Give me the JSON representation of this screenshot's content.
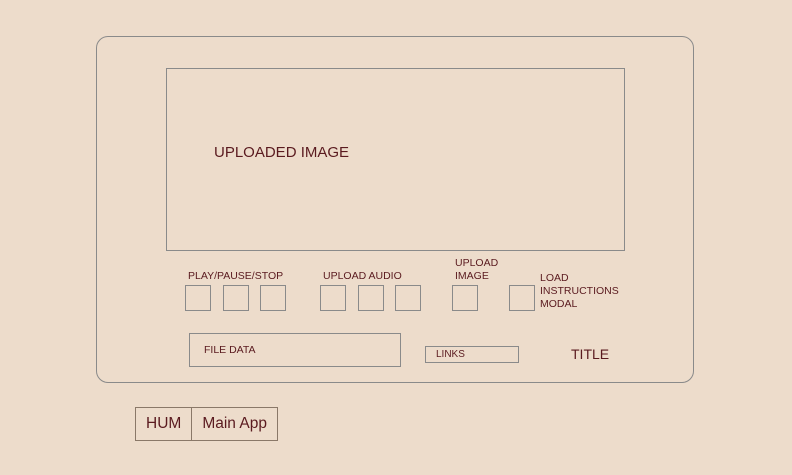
{
  "main": {
    "image_placeholder": "UPLOADED IMAGE",
    "playback_label": "PLAY/PAUSE/STOP",
    "upload_audio_label": "UPLOAD AUDIO",
    "upload_image_label_line1": "UPLOAD",
    "upload_image_label_line2": "IMAGE",
    "instructions_label_line1": "LOAD",
    "instructions_label_line2": "INSTRUCTIONS",
    "instructions_label_line3": "MODAL",
    "file_data_label": "FILE DATA",
    "links_label": "LINKS",
    "title_label": "TITLE"
  },
  "tabs": [
    {
      "label": "HUM"
    },
    {
      "label": "Main App"
    }
  ]
}
